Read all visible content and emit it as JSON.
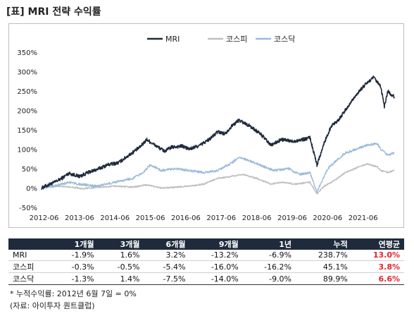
{
  "title": "[표] MRI 전략 수익률",
  "chart_data": {
    "type": "line",
    "xlabel": "",
    "ylabel": "",
    "ylim": [
      -50,
      350
    ],
    "y_ticks": [
      -50,
      0,
      50,
      100,
      150,
      200,
      250,
      300,
      350
    ],
    "y_tick_labels": [
      "-50%",
      "0%",
      "50%",
      "100%",
      "150%",
      "200%",
      "250%",
      "300%",
      "350%"
    ],
    "x_tick_labels": [
      "2012-06",
      "2013-06",
      "2014-06",
      "2015-06",
      "2016-06",
      "2017-06",
      "2018-06",
      "2019-06",
      "2020-06",
      "2021-06"
    ],
    "x_ticks": [
      2012.5,
      2013.5,
      2014.5,
      2015.5,
      2016.5,
      2017.5,
      2018.5,
      2019.5,
      2020.5,
      2021.5
    ],
    "xlim": [
      2012.43,
      2022.4
    ],
    "legend_position": "top-center",
    "series": [
      {
        "name": "MRI",
        "color": "#1f2b3c",
        "points": [
          [
            2012.43,
            0
          ],
          [
            2012.8,
            15
          ],
          [
            2013.0,
            25
          ],
          [
            2013.2,
            38
          ],
          [
            2013.5,
            30
          ],
          [
            2013.8,
            42
          ],
          [
            2014.0,
            48
          ],
          [
            2014.3,
            60
          ],
          [
            2014.6,
            65
          ],
          [
            2014.9,
            85
          ],
          [
            2015.2,
            105
          ],
          [
            2015.4,
            125
          ],
          [
            2015.6,
            112
          ],
          [
            2015.9,
            95
          ],
          [
            2016.1,
            105
          ],
          [
            2016.4,
            108
          ],
          [
            2016.6,
            100
          ],
          [
            2016.9,
            110
          ],
          [
            2017.2,
            128
          ],
          [
            2017.4,
            145
          ],
          [
            2017.6,
            140
          ],
          [
            2017.8,
            160
          ],
          [
            2018.0,
            175
          ],
          [
            2018.3,
            160
          ],
          [
            2018.6,
            140
          ],
          [
            2018.9,
            110
          ],
          [
            2019.2,
            125
          ],
          [
            2019.5,
            120
          ],
          [
            2019.8,
            125
          ],
          [
            2020.0,
            130
          ],
          [
            2020.2,
            60
          ],
          [
            2020.4,
            115
          ],
          [
            2020.6,
            160
          ],
          [
            2020.8,
            175
          ],
          [
            2021.0,
            200
          ],
          [
            2021.3,
            240
          ],
          [
            2021.6,
            270
          ],
          [
            2021.8,
            285
          ],
          [
            2022.0,
            260
          ],
          [
            2022.1,
            210
          ],
          [
            2022.2,
            250
          ],
          [
            2022.3,
            240
          ],
          [
            2022.38,
            235
          ]
        ]
      },
      {
        "name": "코스피",
        "color": "#bfbfbf",
        "points": [
          [
            2012.43,
            0
          ],
          [
            2012.8,
            5
          ],
          [
            2013.2,
            3
          ],
          [
            2013.6,
            -2
          ],
          [
            2014.0,
            2
          ],
          [
            2014.5,
            5
          ],
          [
            2015.0,
            2
          ],
          [
            2015.4,
            8
          ],
          [
            2015.8,
            0
          ],
          [
            2016.2,
            2
          ],
          [
            2016.6,
            5
          ],
          [
            2017.0,
            10
          ],
          [
            2017.4,
            25
          ],
          [
            2017.8,
            30
          ],
          [
            2018.1,
            35
          ],
          [
            2018.5,
            25
          ],
          [
            2018.9,
            10
          ],
          [
            2019.2,
            15
          ],
          [
            2019.6,
            10
          ],
          [
            2020.0,
            15
          ],
          [
            2020.2,
            -15
          ],
          [
            2020.4,
            5
          ],
          [
            2020.7,
            20
          ],
          [
            2021.0,
            40
          ],
          [
            2021.4,
            55
          ],
          [
            2021.6,
            62
          ],
          [
            2021.9,
            55
          ],
          [
            2022.0,
            45
          ],
          [
            2022.2,
            40
          ],
          [
            2022.38,
            45
          ]
        ]
      },
      {
        "name": "코스닥",
        "color": "#9bbbdc",
        "points": [
          [
            2012.43,
            0
          ],
          [
            2012.8,
            5
          ],
          [
            2013.2,
            15
          ],
          [
            2013.5,
            10
          ],
          [
            2014.0,
            5
          ],
          [
            2014.5,
            15
          ],
          [
            2015.0,
            25
          ],
          [
            2015.3,
            40
          ],
          [
            2015.5,
            60
          ],
          [
            2015.8,
            45
          ],
          [
            2016.2,
            50
          ],
          [
            2016.6,
            45
          ],
          [
            2017.0,
            40
          ],
          [
            2017.4,
            45
          ],
          [
            2017.8,
            65
          ],
          [
            2018.0,
            80
          ],
          [
            2018.3,
            70
          ],
          [
            2018.7,
            55
          ],
          [
            2019.0,
            45
          ],
          [
            2019.4,
            50
          ],
          [
            2019.7,
            35
          ],
          [
            2020.0,
            40
          ],
          [
            2020.2,
            -10
          ],
          [
            2020.5,
            50
          ],
          [
            2020.8,
            75
          ],
          [
            2021.0,
            90
          ],
          [
            2021.3,
            100
          ],
          [
            2021.6,
            110
          ],
          [
            2021.9,
            115
          ],
          [
            2022.0,
            100
          ],
          [
            2022.2,
            85
          ],
          [
            2022.38,
            90
          ]
        ]
      }
    ]
  },
  "table": {
    "headers": [
      "",
      "1개월",
      "3개월",
      "6개월",
      "9개월",
      "1년",
      "누적",
      "연평균"
    ],
    "rows": [
      {
        "name": "MRI",
        "values": [
          "-1.9%",
          "1.6%",
          "3.2%",
          "-13.2%",
          "-6.9%",
          "238.7%",
          "13.0%"
        ]
      },
      {
        "name": "코스피",
        "values": [
          "-0.3%",
          "-0.5%",
          "-5.4%",
          "-16.0%",
          "-16.2%",
          "45.1%",
          "3.8%"
        ]
      },
      {
        "name": "코스닥",
        "values": [
          "-1.3%",
          "1.4%",
          "-7.5%",
          "-14.0%",
          "-9.0%",
          "89.9%",
          "6.6%"
        ]
      }
    ],
    "highlight_color": "#e3262c"
  },
  "footnote": "* 누적수익률: 2012년 6월 7일 = 0%",
  "source": "(자료: 아이투자 퀀트클럽)"
}
